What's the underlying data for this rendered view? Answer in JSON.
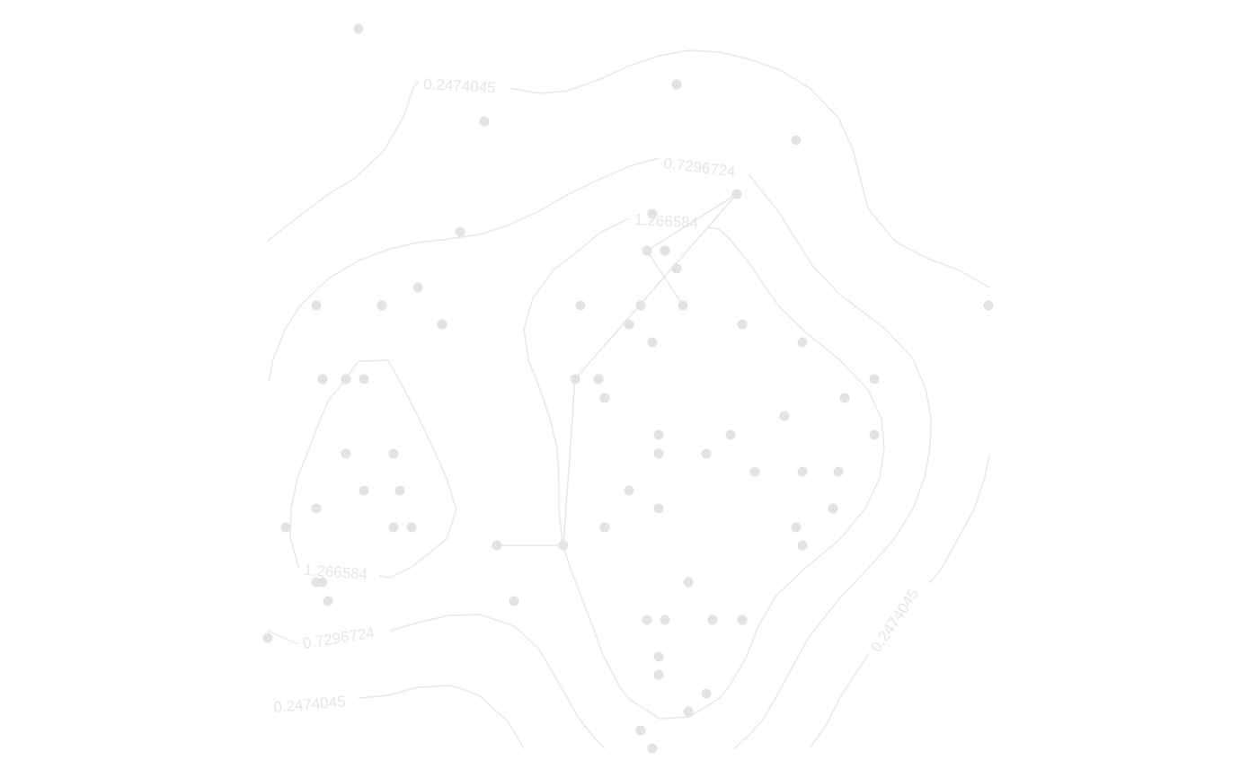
{
  "chart_data": {
    "type": "contour",
    "title": "",
    "xlabel": "",
    "ylabel": "",
    "grid": false,
    "legend": "none",
    "colors": {
      "line": "#e8e8e8",
      "point": "#e3e3e3",
      "label": "#e6e6e6"
    },
    "contour_labels": [
      {
        "value": "0.2474045"
      },
      {
        "value": "0.7296724"
      },
      {
        "value": "1.266584"
      },
      {
        "value": "1.266584"
      },
      {
        "value": "0.7296724"
      },
      {
        "value": "0.2474045"
      },
      {
        "value": "0.2474045"
      }
    ]
  }
}
